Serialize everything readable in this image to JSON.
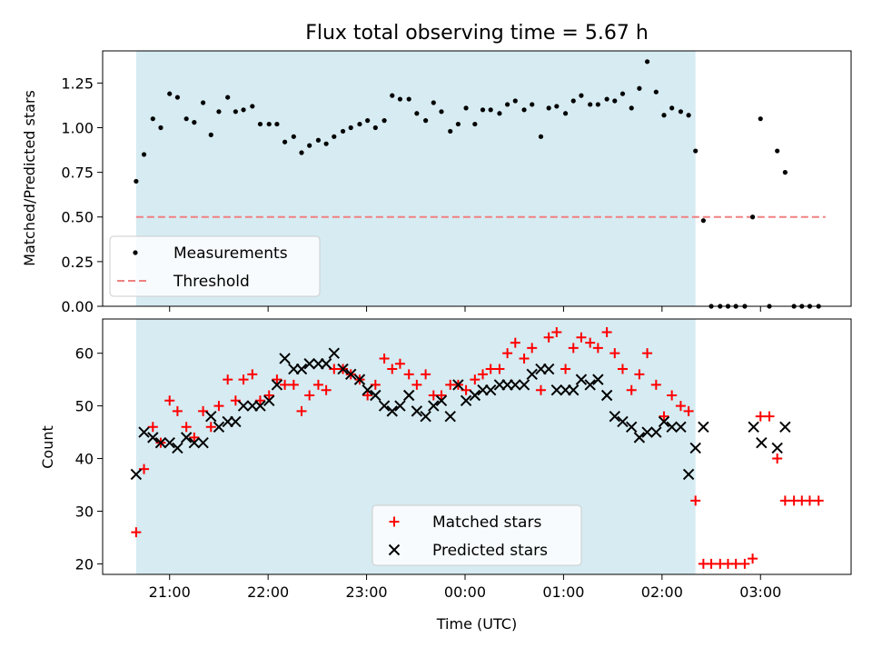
{
  "chart_data": [
    {
      "type": "scatter",
      "title": "Flux total observing time = 5.67 h",
      "xlabel": "",
      "ylabel": "Matched/Predicted stars",
      "ylim": [
        0,
        1.43
      ],
      "yticks": [
        0.0,
        0.25,
        0.5,
        0.75,
        1.0,
        1.25
      ],
      "ytick_labels": [
        "0.00",
        "0.25",
        "0.50",
        "0.75",
        "1.00",
        "1.25"
      ],
      "x_unit": "hours since 21:00 UTC",
      "xlim": [
        -0.68,
        6.92
      ],
      "shaded_span": [
        -0.34,
        5.34
      ],
      "legend": [
        "Measurements",
        "Threshold"
      ],
      "legend_position": "lower-left",
      "threshold": {
        "value": 0.5,
        "x": [
          -0.34,
          6.66
        ],
        "color": "#f08080"
      },
      "series": [
        {
          "name": "Measurements",
          "marker": "dot",
          "color": "#000000",
          "x": [
            -0.34,
            -0.26,
            -0.17,
            -0.09,
            0.0,
            0.08,
            0.17,
            0.25,
            0.34,
            0.42,
            0.5,
            0.59,
            0.67,
            0.75,
            0.84,
            0.92,
            1.01,
            1.09,
            1.17,
            1.26,
            1.34,
            1.42,
            1.51,
            1.59,
            1.67,
            1.76,
            1.84,
            1.93,
            2.01,
            2.09,
            2.18,
            2.26,
            2.34,
            2.43,
            2.51,
            2.6,
            2.68,
            2.76,
            2.85,
            2.93,
            3.01,
            3.1,
            3.18,
            3.26,
            3.35,
            3.43,
            3.51,
            3.6,
            3.68,
            3.77,
            3.85,
            3.93,
            4.02,
            4.1,
            4.18,
            4.27,
            4.35,
            4.44,
            4.52,
            4.6,
            4.69,
            4.77,
            4.85,
            4.94,
            5.02,
            5.1,
            5.19,
            5.27,
            5.34,
            5.42,
            5.5,
            5.59,
            5.67,
            5.75,
            5.84,
            5.92,
            6.0,
            6.09,
            6.17,
            6.25,
            6.34,
            6.42,
            6.5,
            6.59
          ],
          "y": [
            0.7,
            0.85,
            1.05,
            1.0,
            1.19,
            1.17,
            1.05,
            1.03,
            1.14,
            0.96,
            1.09,
            1.17,
            1.09,
            1.1,
            1.12,
            1.02,
            1.02,
            1.02,
            0.92,
            0.95,
            0.86,
            0.9,
            0.93,
            0.91,
            0.95,
            0.98,
            1.0,
            1.02,
            1.04,
            1.0,
            1.04,
            1.18,
            1.16,
            1.16,
            1.08,
            1.04,
            1.14,
            1.09,
            0.98,
            1.02,
            1.11,
            1.02,
            1.1,
            1.1,
            1.08,
            1.13,
            1.15,
            1.1,
            1.13,
            0.95,
            1.11,
            1.12,
            1.08,
            1.15,
            1.18,
            1.13,
            1.13,
            1.16,
            1.15,
            1.19,
            1.11,
            1.22,
            1.37,
            1.2,
            1.07,
            1.11,
            1.09,
            1.07,
            0.87,
            0.48,
            0.0,
            0.0,
            0.0,
            0.0,
            0.0,
            0.5,
            1.05,
            0.0,
            0.87,
            0.75,
            0.0,
            0.0,
            0.0,
            0.0
          ]
        }
      ]
    },
    {
      "type": "scatter",
      "title": "",
      "xlabel": "Time (UTC)",
      "ylabel": "Count",
      "ylim": [
        18,
        66.5
      ],
      "yticks": [
        20,
        30,
        40,
        50,
        60
      ],
      "ytick_labels": [
        "20",
        "30",
        "40",
        "50",
        "60"
      ],
      "x_unit": "hours since 21:00 UTC",
      "xlim": [
        -0.68,
        6.92
      ],
      "xticks": [
        0,
        1,
        2,
        3,
        4,
        5,
        6
      ],
      "xtick_labels": [
        "21:00",
        "22:00",
        "23:00",
        "00:00",
        "01:00",
        "02:00",
        "03:00"
      ],
      "shaded_span": [
        -0.34,
        5.34
      ],
      "legend": [
        "Matched stars",
        "Predicted stars"
      ],
      "legend_position": "lower-center",
      "series": [
        {
          "name": "Matched stars",
          "marker": "plus",
          "color": "#ff0000",
          "x": [
            -0.34,
            -0.26,
            -0.17,
            -0.09,
            0.0,
            0.08,
            0.17,
            0.25,
            0.34,
            0.42,
            0.5,
            0.59,
            0.67,
            0.75,
            0.84,
            0.92,
            1.01,
            1.09,
            1.17,
            1.26,
            1.34,
            1.42,
            1.51,
            1.59,
            1.67,
            1.76,
            1.84,
            1.93,
            2.01,
            2.09,
            2.18,
            2.26,
            2.34,
            2.43,
            2.51,
            2.6,
            2.68,
            2.76,
            2.85,
            2.93,
            3.01,
            3.1,
            3.18,
            3.26,
            3.35,
            3.43,
            3.51,
            3.6,
            3.68,
            3.77,
            3.85,
            3.93,
            4.02,
            4.1,
            4.18,
            4.27,
            4.35,
            4.44,
            4.52,
            4.6,
            4.69,
            4.77,
            4.85,
            4.94,
            5.02,
            5.1,
            5.19,
            5.27,
            5.34,
            5.42,
            5.5,
            5.59,
            5.67,
            5.75,
            5.84,
            5.92,
            6.0,
            6.09,
            6.17,
            6.25,
            6.34,
            6.42,
            6.5,
            6.59
          ],
          "y": [
            26,
            38,
            46,
            43,
            51,
            49,
            46,
            44,
            49,
            46,
            50,
            55,
            51,
            55,
            56,
            51,
            52,
            55,
            54,
            54,
            49,
            52,
            54,
            53,
            57,
            57,
            56,
            55,
            52,
            54,
            59,
            57,
            58,
            56,
            54,
            56,
            52,
            52,
            54,
            54,
            53,
            55,
            56,
            57,
            57,
            60,
            62,
            59,
            61,
            53,
            63,
            64,
            57,
            61,
            63,
            62,
            61,
            64,
            60,
            57,
            53,
            56,
            60,
            54,
            48,
            52,
            50,
            49,
            32,
            20,
            20,
            20,
            20,
            20,
            20,
            21,
            48,
            48,
            40,
            32,
            32,
            32,
            32,
            32
          ]
        },
        {
          "name": "Predicted stars",
          "marker": "x",
          "color": "#000000",
          "x": [
            -0.34,
            -0.26,
            -0.17,
            -0.09,
            0.0,
            0.08,
            0.17,
            0.25,
            0.34,
            0.42,
            0.5,
            0.59,
            0.67,
            0.75,
            0.84,
            0.92,
            1.01,
            1.09,
            1.17,
            1.26,
            1.34,
            1.42,
            1.51,
            1.59,
            1.67,
            1.76,
            1.84,
            1.93,
            2.01,
            2.09,
            2.18,
            2.26,
            2.34,
            2.43,
            2.51,
            2.6,
            2.68,
            2.76,
            2.85,
            2.93,
            3.01,
            3.1,
            3.18,
            3.26,
            3.35,
            3.43,
            3.51,
            3.6,
            3.68,
            3.77,
            3.85,
            3.93,
            4.02,
            4.1,
            4.18,
            4.27,
            4.35,
            4.44,
            4.52,
            4.6,
            4.69,
            4.77,
            4.85,
            4.94,
            5.02,
            5.1,
            5.19,
            5.27,
            5.34,
            5.42,
            5.93,
            6.01,
            6.17,
            6.25
          ],
          "y": [
            37,
            45,
            44,
            43,
            43,
            42,
            44,
            43,
            43,
            48,
            46,
            47,
            47,
            50,
            50,
            50,
            51,
            54,
            59,
            57,
            57,
            58,
            58,
            58,
            60,
            57,
            56,
            55,
            53,
            52,
            50,
            49,
            50,
            52,
            49,
            48,
            50,
            51,
            48,
            54,
            51,
            52,
            53,
            53,
            54,
            54,
            54,
            54,
            56,
            57,
            57,
            53,
            53,
            53,
            55,
            54,
            55,
            52,
            48,
            47,
            46,
            44,
            45,
            45,
            47,
            46,
            46,
            37,
            42,
            46,
            46,
            43,
            42,
            46
          ]
        }
      ]
    }
  ]
}
